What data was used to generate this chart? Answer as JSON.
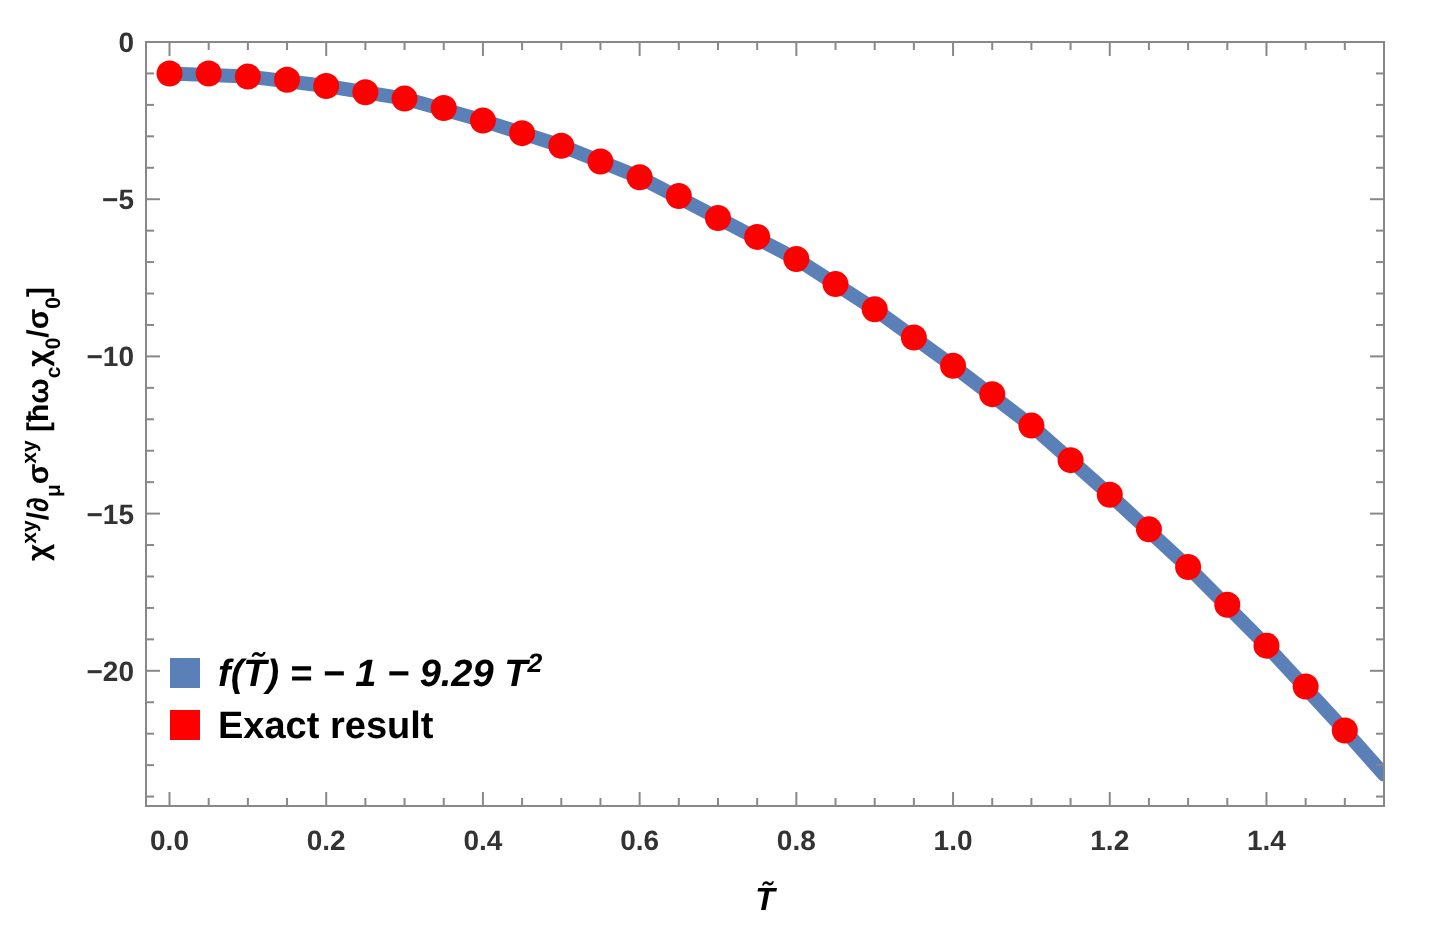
{
  "chart_data": {
    "type": "line",
    "xlabel": "T̃",
    "ylabel": "χ$^{xy}$/∂$_{μ}$σ$^{xy}$  [ħω$_{c}$χ$_{0}$/σ$_{0}$]",
    "xlim": [
      -0.03,
      1.55
    ],
    "ylim": [
      -24.3,
      0
    ],
    "xticks": [
      {
        "value": 0,
        "label": "0.0"
      },
      {
        "value": 0.05,
        "label": null
      },
      {
        "value": 0.1,
        "label": null
      },
      {
        "value": 0.15,
        "label": null
      },
      {
        "value": 0.2,
        "label": "0.2"
      },
      {
        "value": 0.25,
        "label": null
      },
      {
        "value": 0.3,
        "label": null
      },
      {
        "value": 0.35,
        "label": null
      },
      {
        "value": 0.4,
        "label": "0.4"
      },
      {
        "value": 0.45,
        "label": null
      },
      {
        "value": 0.5,
        "label": null
      },
      {
        "value": 0.55,
        "label": null
      },
      {
        "value": 0.6,
        "label": "0.6"
      },
      {
        "value": 0.65,
        "label": null
      },
      {
        "value": 0.7,
        "label": null
      },
      {
        "value": 0.75,
        "label": null
      },
      {
        "value": 0.8,
        "label": "0.8"
      },
      {
        "value": 0.85,
        "label": null
      },
      {
        "value": 0.9,
        "label": null
      },
      {
        "value": 0.95,
        "label": null
      },
      {
        "value": 1,
        "label": "1.0"
      },
      {
        "value": 1.05,
        "label": null
      },
      {
        "value": 1.1,
        "label": null
      },
      {
        "value": 1.15,
        "label": null
      },
      {
        "value": 1.2,
        "label": "1.2"
      },
      {
        "value": 1.25,
        "label": null
      },
      {
        "value": 1.3,
        "label": null
      },
      {
        "value": 1.35,
        "label": null
      },
      {
        "value": 1.4,
        "label": "1.4"
      },
      {
        "value": 1.45,
        "label": null
      },
      {
        "value": 1.5,
        "label": null
      }
    ],
    "yticks": [
      0,
      {
        "value": -1,
        "label": null
      },
      {
        "value": -2,
        "label": null
      },
      {
        "value": -3,
        "label": null
      },
      {
        "value": -4,
        "label": null
      },
      {
        "value": -5,
        "label": "−5"
      },
      {
        "value": -6,
        "label": null
      },
      {
        "value": -7,
        "label": null
      },
      {
        "value": -8,
        "label": null
      },
      {
        "value": -9,
        "label": null
      },
      {
        "value": -10,
        "label": "−10"
      },
      {
        "value": -11,
        "label": null
      },
      {
        "value": -12,
        "label": null
      },
      {
        "value": -13,
        "label": null
      },
      {
        "value": -14,
        "label": null
      },
      {
        "value": -15,
        "label": "−15"
      },
      {
        "value": -16,
        "label": null
      },
      {
        "value": -17,
        "label": null
      },
      {
        "value": -18,
        "label": null
      },
      {
        "value": -19,
        "label": null
      },
      {
        "value": -20,
        "label": "−20"
      },
      {
        "value": -21,
        "label": null
      },
      {
        "value": -22,
        "label": null
      },
      {
        "value": -23,
        "label": null
      },
      {
        "value": -24,
        "label": null
      }
    ],
    "grid": false,
    "legend": "bottom left",
    "series": [
      {
        "name": "f(T̃) = − 1 − 9.29 T$^{2}$",
        "color": "#5b80b8",
        "line_style": "solid",
        "x": [
          0,
          0.1,
          0.2,
          0.3,
          0.4,
          0.5,
          0.6,
          0.7,
          0.8,
          0.9,
          1.0,
          1.1,
          1.2,
          1.3,
          1.4,
          1.5,
          1.55
        ],
        "values": [
          -1,
          -1.1,
          -1.4,
          -1.8,
          -2.5,
          -3.3,
          -4.3,
          -5.6,
          -6.9,
          -8.5,
          -10.3,
          -12.2,
          -14.4,
          -16.7,
          -19.2,
          -21.9,
          -23.3
        ]
      },
      {
        "name": "Exact result",
        "type": "scatter",
        "color": "#ff0000",
        "marker": "circle",
        "x": [
          0,
          0.05,
          0.1,
          0.15,
          0.2,
          0.25,
          0.3,
          0.35,
          0.4,
          0.45,
          0.5,
          0.55,
          0.6,
          0.65,
          0.7,
          0.75,
          0.8,
          0.85,
          0.9,
          0.95,
          1.0,
          1.05,
          1.1,
          1.15,
          1.2,
          1.25,
          1.3,
          1.35,
          1.4,
          1.45,
          1.5
        ],
        "values": [
          -1,
          -1,
          -1.1,
          -1.2,
          -1.4,
          -1.6,
          -1.8,
          -2.1,
          -2.5,
          -2.9,
          -3.3,
          -3.8,
          -4.3,
          -4.9,
          -5.6,
          -6.2,
          -6.9,
          -7.7,
          -8.5,
          -9.4,
          -10.3,
          -11.2,
          -12.2,
          -13.3,
          -14.4,
          -15.5,
          -16.7,
          -17.9,
          -19.2,
          -20.5,
          -21.9
        ]
      }
    ]
  }
}
